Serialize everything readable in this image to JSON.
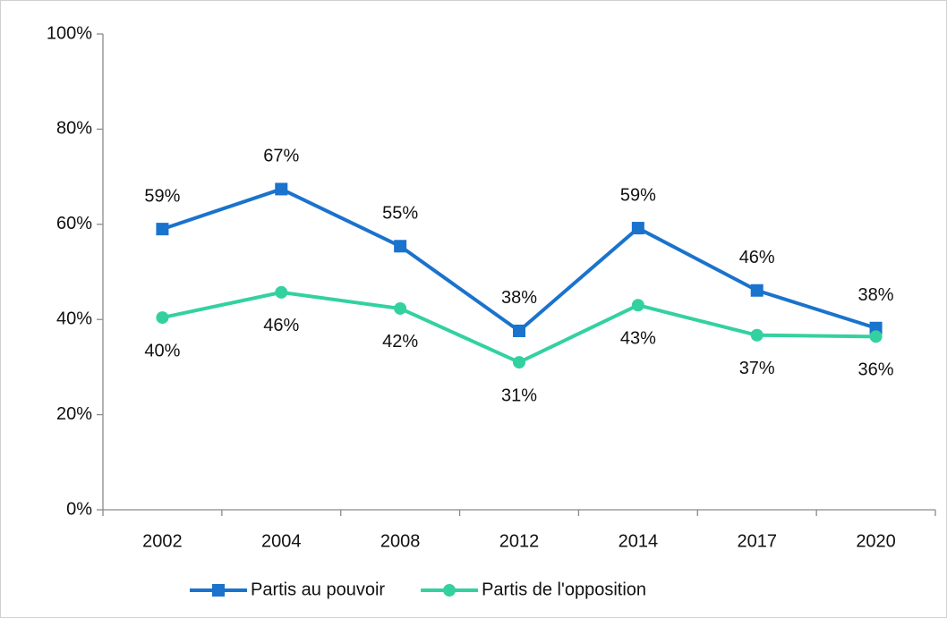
{
  "chart_data": {
    "type": "line",
    "categories": [
      "2002",
      "2004",
      "2008",
      "2012",
      "2014",
      "2017",
      "2020"
    ],
    "series": [
      {
        "name": "Partis au pouvoir",
        "color": "#1a73cc",
        "marker": "square",
        "values": [
          59.0,
          67.4,
          55.4,
          37.6,
          59.2,
          46.1,
          38.2
        ],
        "value_labels": [
          "59%",
          "67%",
          "55%",
          "38%",
          "59%",
          "46%",
          "38%"
        ]
      },
      {
        "name": "Partis de l'opposition",
        "color": "#33d1a0",
        "marker": "circle",
        "values": [
          40.4,
          45.7,
          42.3,
          31.0,
          43.0,
          36.7,
          36.4
        ],
        "value_labels": [
          "40%",
          "46%",
          "42%",
          "31%",
          "43%",
          "37%",
          "36%"
        ]
      }
    ],
    "ylim": [
      0,
      100
    ],
    "yticks": [
      {
        "value": 0,
        "label": "0%"
      },
      {
        "value": 20,
        "label": "20%"
      },
      {
        "value": 40,
        "label": "40%"
      },
      {
        "value": 60,
        "label": "60%"
      },
      {
        "value": 80,
        "label": "80%"
      },
      {
        "value": 100,
        "label": "100%"
      }
    ],
    "grid": false,
    "legend": "bottom"
  }
}
